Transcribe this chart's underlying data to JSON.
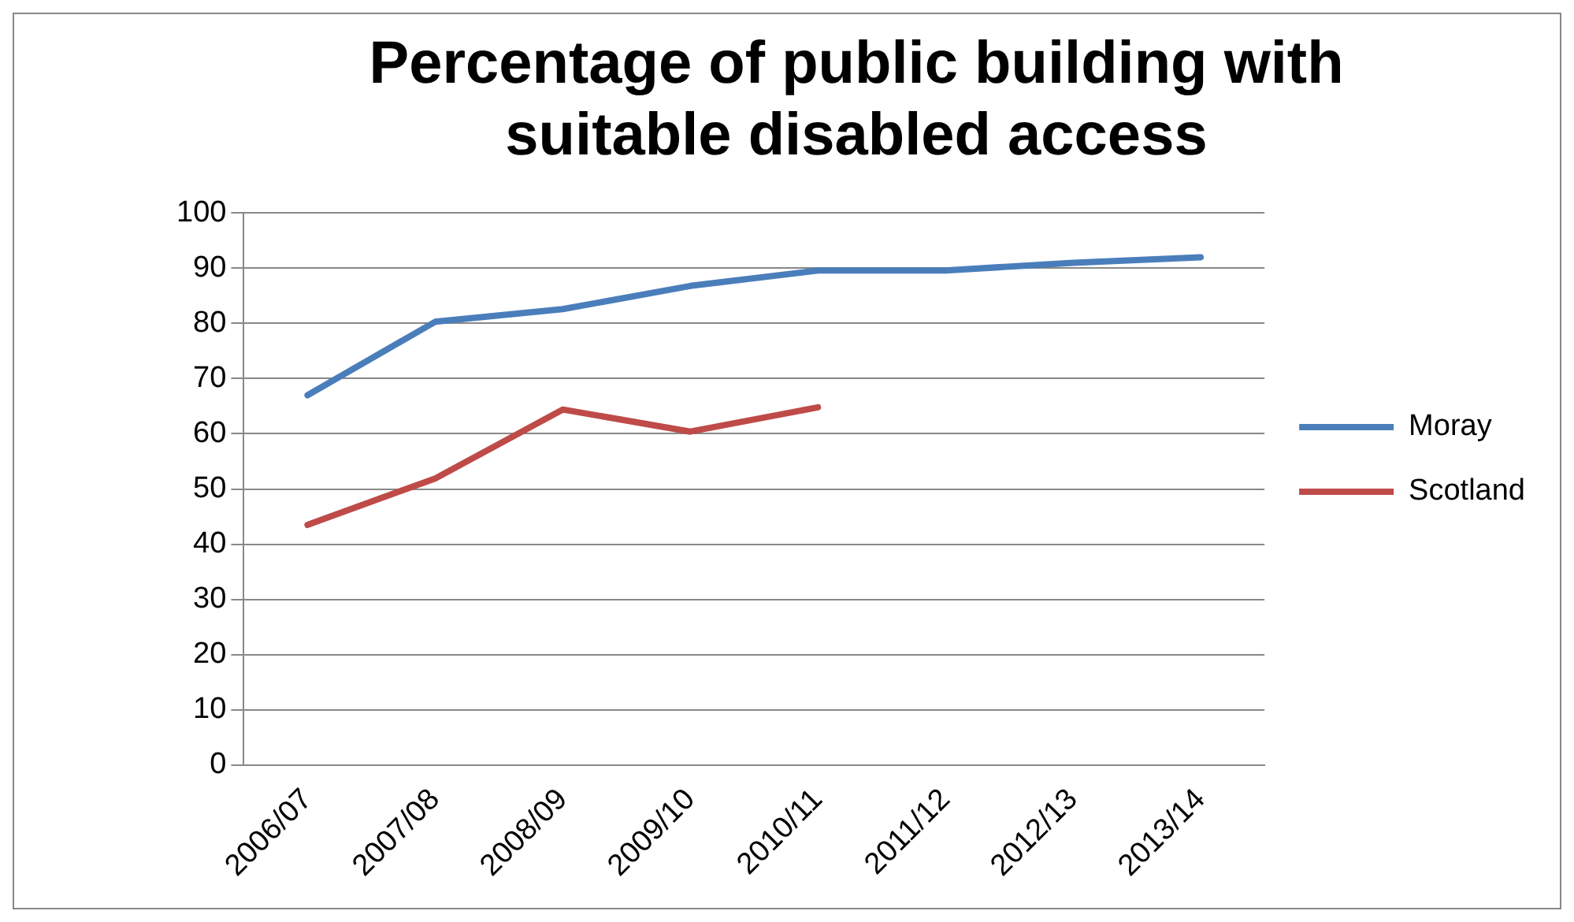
{
  "chart_data": {
    "type": "line",
    "title": [
      "Percentage of public building with",
      "suitable disabled access"
    ],
    "categories": [
      "2006/07",
      "2007/08",
      "2008/09",
      "2009/10",
      "2010/11",
      "2011/12",
      "2012/13",
      "2013/14"
    ],
    "series": [
      {
        "name": "Moray",
        "color": "#4a7ebb",
        "values": [
          67,
          80.3,
          82.6,
          86.8,
          89.6,
          89.6,
          91,
          92
        ]
      },
      {
        "name": "Scotland",
        "color": "#be4b48",
        "values": [
          43.5,
          51.9,
          64.4,
          60.4,
          64.8,
          null,
          null,
          null
        ]
      }
    ],
    "ylim": [
      0,
      100
    ],
    "yticks": [
      0,
      10,
      20,
      30,
      40,
      50,
      60,
      70,
      80,
      90,
      100
    ],
    "grid": "y",
    "legend": "right",
    "marker": "none",
    "line_style": "solid"
  }
}
